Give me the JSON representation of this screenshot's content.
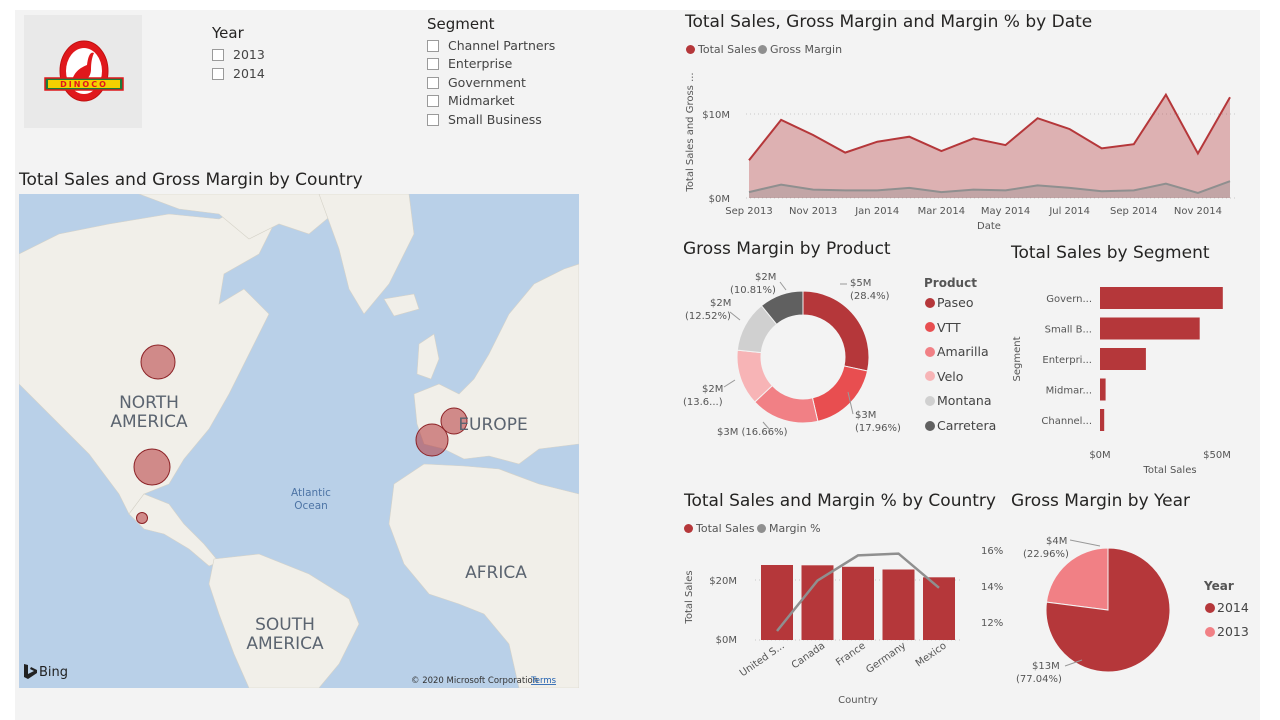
{
  "colors": {
    "accent": "#b5373a",
    "accent_light": "#e86b6e",
    "pink": "#f59ea0",
    "grey": "#8f8f8f",
    "dark": "#606060"
  },
  "logo": {
    "text": "DINOCO"
  },
  "year_slicer": {
    "title": "Year",
    "items": [
      "2013",
      "2014"
    ]
  },
  "segment_slicer": {
    "title": "Segment",
    "items": [
      "Channel Partners",
      "Enterprise",
      "Government",
      "Midmarket",
      "Small Business"
    ]
  },
  "map": {
    "title": "Total Sales and Gross Margin by Country",
    "labels": {
      "north_america": [
        "NORTH",
        "AMERICA"
      ],
      "europe": "EUROPE",
      "africa": "AFRICA",
      "south_america": [
        "SOUTH",
        "AMERICA"
      ],
      "ocean": [
        "Atlantic",
        "Ocean"
      ]
    },
    "bing": "Bing",
    "copyright": "© 2020 Microsoft Corporation",
    "terms": "Terms"
  },
  "area_chart": {
    "title": "Total Sales, Gross Margin and Margin % by Date",
    "legend": [
      "Total Sales",
      "Gross Margin"
    ],
    "ylabel": "Total Sales and Gross ...",
    "xlabel": "Date",
    "yticks": [
      "$10M",
      "$0M"
    ],
    "xticks": [
      "Sep 2013",
      "Nov 2013",
      "Jan 2014",
      "Mar 2014",
      "May 2014",
      "Jul 2014",
      "Sep 2014",
      "Nov 2014"
    ]
  },
  "donut": {
    "title": "Gross Margin by Product",
    "legend_title": "Product",
    "legend": [
      "Paseo",
      "VTT",
      "Amarilla",
      "Velo",
      "Montana",
      "Carretera"
    ],
    "labels": [
      {
        "a": "$5M",
        "b": "(28.4%)"
      },
      {
        "a": "$3M",
        "b": "(17.96%)"
      },
      {
        "a": "$3M (16.66%)",
        "b": ""
      },
      {
        "a": "$2M",
        "b": "(13.6...)"
      },
      {
        "a": "$2M",
        "b": "(12.52%)"
      },
      {
        "a": "$2M",
        "b": "(10.81%)"
      }
    ]
  },
  "segment_bar": {
    "title": "Total Sales by Segment",
    "ylabel": "Segment",
    "xlabel": "Total Sales",
    "categories": [
      "Govern...",
      "Small B...",
      "Enterpri...",
      "Midmar...",
      "Channel..."
    ],
    "xticks": [
      "$0M",
      "$50M"
    ]
  },
  "country_combo": {
    "title": "Total Sales and Margin % by Country",
    "legend": [
      "Total Sales",
      "Margin %"
    ],
    "ylabel": "Total Sales",
    "xlabel": "Country",
    "yticks_left": [
      "$20M",
      "$0M"
    ],
    "yticks_right": [
      "16%",
      "14%",
      "12%"
    ],
    "categories": [
      "United S...",
      "Canada",
      "France",
      "Germany",
      "Mexico"
    ]
  },
  "year_pie": {
    "title": "Gross Margin by Year",
    "legend_title": "Year",
    "legend": [
      "2014",
      "2013"
    ],
    "labels": [
      {
        "a": "$4M",
        "b": "(22.96%)"
      },
      {
        "a": "$13M",
        "b": "(77.04%)"
      }
    ]
  },
  "chart_data": [
    {
      "type": "area",
      "title": "Total Sales, Gross Margin and Margin % by Date",
      "xlabel": "Date",
      "ylabel": "Total Sales and Gross ...",
      "x": [
        "Sep 2013",
        "Oct 2013",
        "Nov 2013",
        "Dec 2013",
        "Jan 2014",
        "Feb 2014",
        "Mar 2014",
        "Apr 2014",
        "May 2014",
        "Jun 2014",
        "Jul 2014",
        "Aug 2014",
        "Sep 2014",
        "Oct 2014",
        "Nov 2014",
        "Dec 2014"
      ],
      "series": [
        {
          "name": "Total Sales",
          "values": [
            4.5,
            9.3,
            7.5,
            5.4,
            6.7,
            7.3,
            5.6,
            7.1,
            6.3,
            9.5,
            8.2,
            5.9,
            6.4,
            12.3,
            5.3,
            12.0
          ]
        },
        {
          "name": "Gross Margin",
          "values": [
            0.7,
            1.6,
            1.0,
            0.9,
            0.9,
            1.2,
            0.7,
            1.0,
            0.9,
            1.5,
            1.2,
            0.8,
            0.9,
            1.7,
            0.6,
            2.0
          ]
        }
      ],
      "ylim": [
        0,
        14
      ]
    },
    {
      "type": "pie",
      "title": "Gross Margin by Product",
      "categories": [
        "Paseo",
        "VTT",
        "Amarilla",
        "Velo",
        "Montana",
        "Carretera"
      ],
      "values": [
        28.4,
        17.96,
        16.66,
        13.6,
        12.52,
        10.81
      ]
    },
    {
      "type": "bar",
      "title": "Total Sales by Segment",
      "categories": [
        "Government",
        "Small Business",
        "Enterprise",
        "Midmarket",
        "Channel Partners"
      ],
      "values": [
        52.5,
        42.6,
        19.6,
        2.4,
        1.8
      ],
      "xlim": [
        0,
        55
      ]
    },
    {
      "type": "bar",
      "title": "Total Sales and Margin % by Country",
      "categories": [
        "United States",
        "Canada",
        "France",
        "Germany",
        "Mexico"
      ],
      "series": [
        {
          "name": "Total Sales",
          "values": [
            25.0,
            24.9,
            24.4,
            23.5,
            20.9
          ]
        },
        {
          "name": "Margin %",
          "values": [
            11.5,
            14.3,
            15.7,
            15.8,
            13.9
          ]
        }
      ],
      "ylim_left": [
        0,
        30
      ],
      "ylim_right": [
        11,
        17
      ]
    },
    {
      "type": "pie",
      "title": "Gross Margin by Year",
      "categories": [
        "2014",
        "2013"
      ],
      "values": [
        77.04,
        22.96
      ]
    }
  ]
}
